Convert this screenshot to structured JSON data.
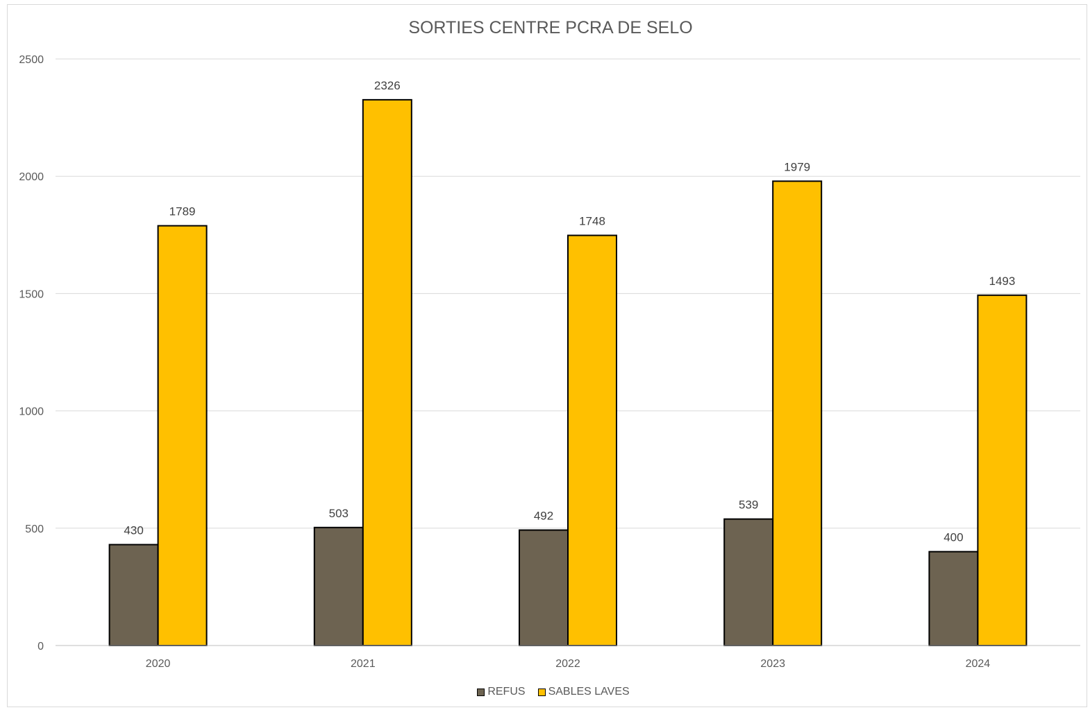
{
  "chart_data": {
    "type": "bar",
    "title": "SORTIES CENTRE PCRA DE SELO",
    "xlabel": "",
    "ylabel": "",
    "categories": [
      "2020",
      "2021",
      "2022",
      "2023",
      "2024"
    ],
    "series": [
      {
        "name": "REFUS",
        "color": "#6d6351",
        "values": [
          430,
          503,
          492,
          539,
          400
        ]
      },
      {
        "name": "SABLES LAVES",
        "color": "#ffc000",
        "values": [
          1789,
          2326,
          1748,
          1979,
          1493
        ]
      }
    ],
    "ylim": [
      0,
      2500
    ],
    "yticks": [
      0,
      500,
      1000,
      1500,
      2000,
      2500
    ],
    "grid": true,
    "legend_position": "bottom",
    "data_labels": true
  }
}
